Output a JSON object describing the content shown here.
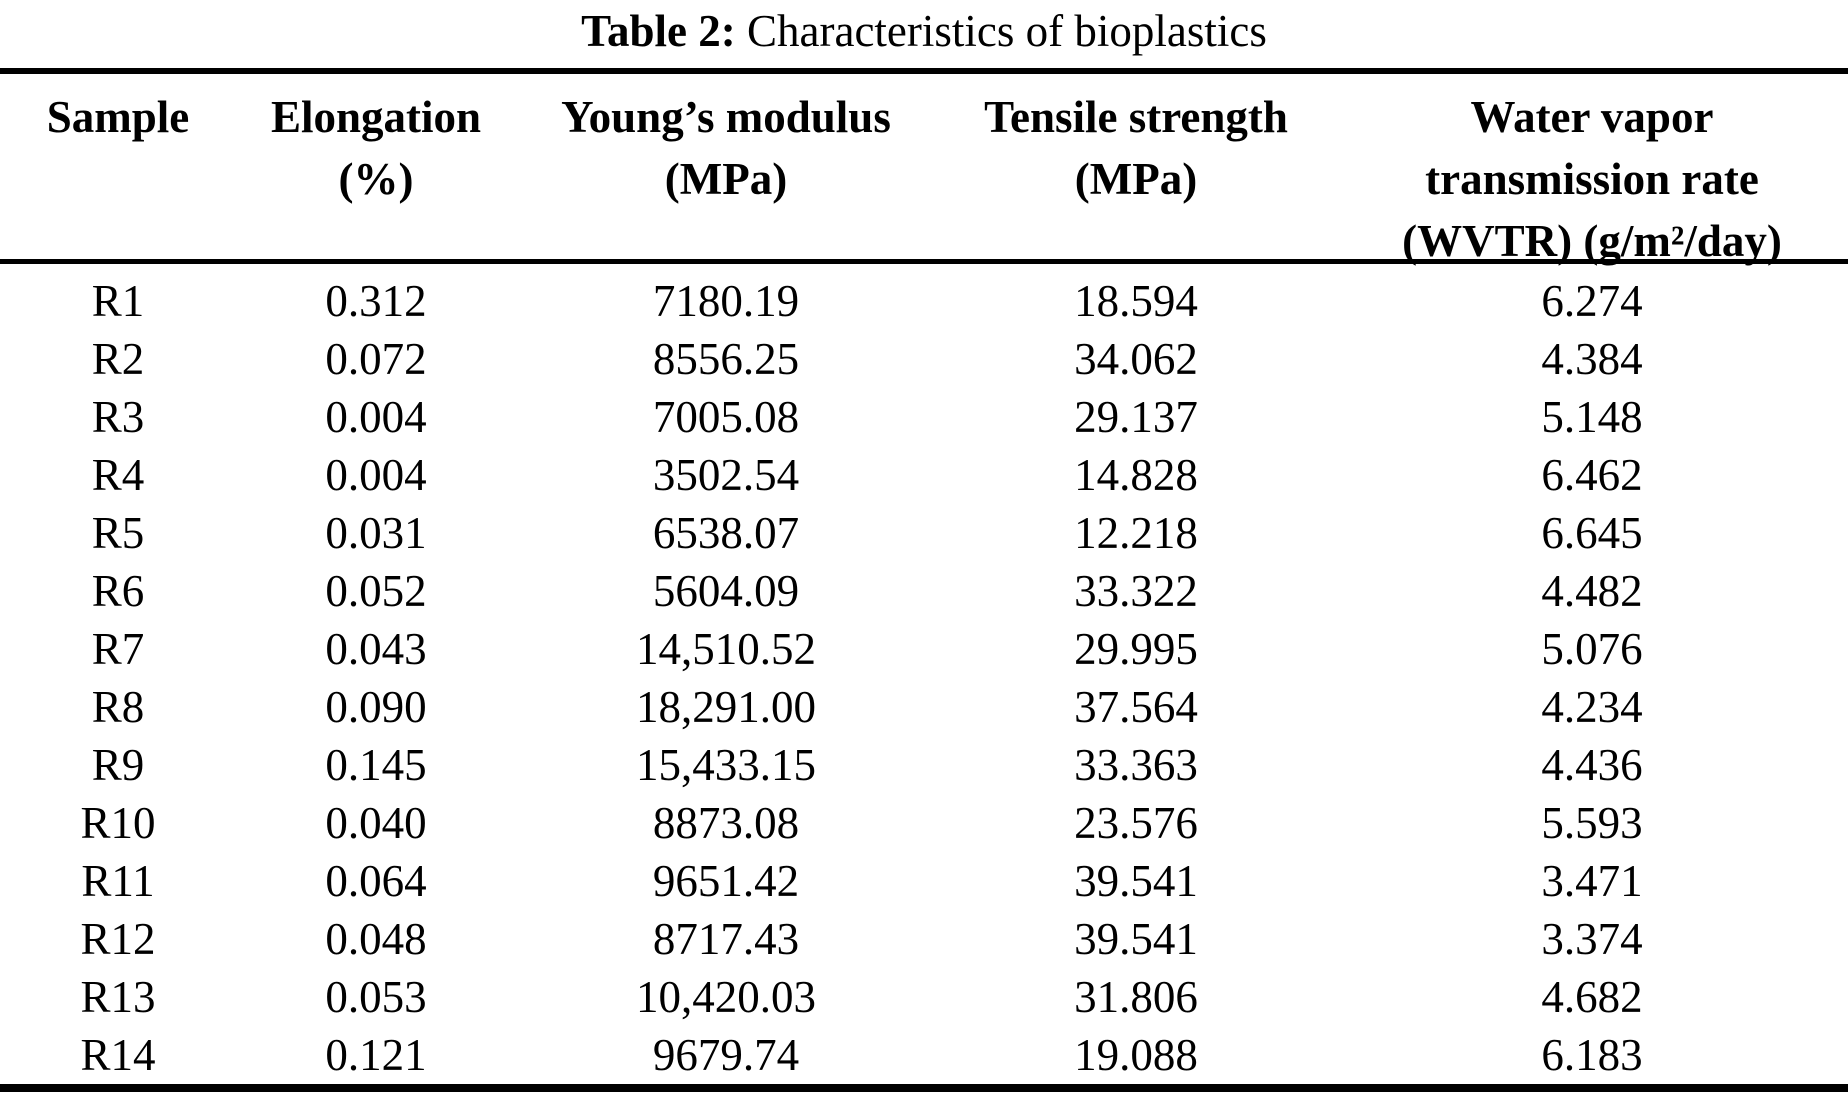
{
  "title": {
    "label": "Table 2:",
    "text": " Characteristics of bioplastics"
  },
  "table": {
    "columns": [
      {
        "key": "sample",
        "name": "Sample",
        "lines": [
          "Sample"
        ]
      },
      {
        "key": "elongation",
        "name": "Elongation (%)",
        "lines": [
          "Elongation",
          "(%)"
        ]
      },
      {
        "key": "youngs_modulus",
        "name": "Young’s modulus (MPa)",
        "lines": [
          "Young’s modulus",
          "(MPa)"
        ]
      },
      {
        "key": "tensile_strength",
        "name": "Tensile strength (MPa)",
        "lines": [
          "Tensile strength",
          "(MPa)"
        ]
      },
      {
        "key": "wvtr",
        "name": "Water vapor transmission rate (WVTR) (g/m²/day)",
        "lines": [
          "Water vapor",
          "transmission rate",
          "(WVTR) (g/m²/day)"
        ]
      }
    ],
    "rows": [
      [
        "R1",
        "0.312",
        "7180.19",
        "18.594",
        "6.274"
      ],
      [
        "R2",
        "0.072",
        "8556.25",
        "34.062",
        "4.384"
      ],
      [
        "R3",
        "0.004",
        "7005.08",
        "29.137",
        "5.148"
      ],
      [
        "R4",
        "0.004",
        "3502.54",
        "14.828",
        "6.462"
      ],
      [
        "R5",
        "0.031",
        "6538.07",
        "12.218",
        "6.645"
      ],
      [
        "R6",
        "0.052",
        "5604.09",
        "33.322",
        "4.482"
      ],
      [
        "R7",
        "0.043",
        "14,510.52",
        "29.995",
        "5.076"
      ],
      [
        "R8",
        "0.090",
        "18,291.00",
        "37.564",
        "4.234"
      ],
      [
        "R9",
        "0.145",
        "15,433.15",
        "33.363",
        "4.436"
      ],
      [
        "R10",
        "0.040",
        "8873.08",
        "23.576",
        "5.593"
      ],
      [
        "R11",
        "0.064",
        "9651.42",
        "39.541",
        "3.471"
      ],
      [
        "R12",
        "0.048",
        "8717.43",
        "39.541",
        "3.374"
      ],
      [
        "R13",
        "0.053",
        "10,420.03",
        "31.806",
        "4.682"
      ],
      [
        "R14",
        "0.121",
        "9679.74",
        "19.088",
        "6.183"
      ]
    ]
  },
  "colors": {
    "text": "#000000",
    "background": "#ffffff",
    "rule": "#000000"
  }
}
